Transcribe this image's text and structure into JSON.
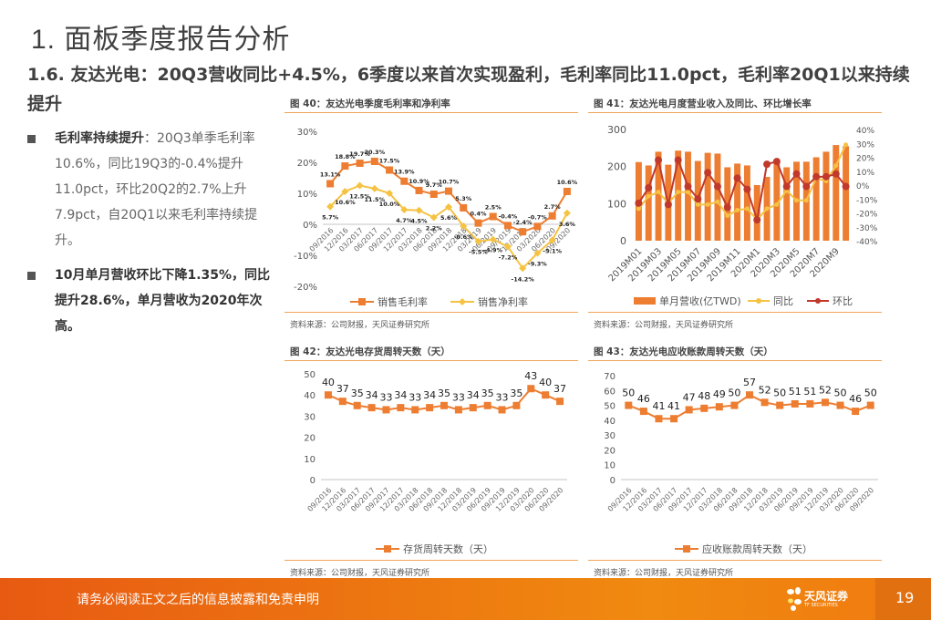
{
  "header": {
    "title": "1. 面板季度报告分析",
    "subtitle": "1.6. 友达光电：20Q3营收同比+4.5%，6季度以来首次实现盈利，毛利率同比11.0pct，毛利率20Q1以来持续提升"
  },
  "bullets": [
    {
      "bold": "毛利率持续提升",
      "text": "：20Q3单季毛利率10.6%，同比19Q3的-0.4%提升11.0pct，环比20Q2的2.7%上升7.9pct，自20Q1以来毛利率持续提升。"
    },
    {
      "bold": "10月单月营收环比下降1.35%，同比提升28.6%，单月营收为2020年次高。",
      "text": ""
    }
  ],
  "source_note": "资料来源：公司财报，天风证券研究所",
  "footer": {
    "disclaimer": "请务必阅读正文之后的信息披露和免责申明",
    "logo_text": "天风证券",
    "logo_sub": "TF SECURITIES",
    "page_number": "19"
  },
  "colors": {
    "orange": "#ed7d31",
    "yellow": "#f5c242",
    "red": "#c0392b",
    "rule": "#f2a65a",
    "footer": "#ee7a12"
  },
  "chart_data": [
    {
      "id": "fig40",
      "title": "图 40：友达光电季度毛利率和净利率",
      "type": "line",
      "categories": [
        "09/2016",
        "12/2016",
        "03/2017",
        "06/2017",
        "09/2017",
        "12/2017",
        "03/2018",
        "06/2018",
        "09/2018",
        "12/2018",
        "03/2019",
        "06/2019",
        "09/2019",
        "12/2019",
        "03/2020",
        "06/2020",
        "09/2020"
      ],
      "series": [
        {
          "name": "销售毛利率",
          "values": [
            13.1,
            18.8,
            19.7,
            20.3,
            17.5,
            13.9,
            10.9,
            9.7,
            10.7,
            5.3,
            0.4,
            2.5,
            -0.4,
            -2.4,
            -0.7,
            2.7,
            10.6
          ],
          "labels": [
            "13.1%",
            "18.8%",
            "19.7%",
            "20.3%",
            "17.5%",
            "13.9%",
            "10.9%",
            "9.7%",
            "10.7%",
            "5.3%",
            "0.4%",
            "2.5%",
            "-0.4%",
            "-2.4%",
            "-0.7%",
            "2.7%",
            "10.6%"
          ]
        },
        {
          "name": "销售净利率",
          "values": [
            5.7,
            10.6,
            12.5,
            11.5,
            10.0,
            4.7,
            4.5,
            2.2,
            5.6,
            -0.6,
            -5.5,
            -4.9,
            -7.2,
            -14.2,
            -9.3,
            -5.1,
            3.6
          ],
          "labels": [
            "5.7%",
            "10.6%",
            "12.5%",
            "11.5%",
            "10.0%",
            "4.7%",
            "4.5%",
            "2.2%",
            "5.6%",
            "-0.6%",
            "-5.5%",
            "-4.9%",
            "-7.2%",
            "-14.2%",
            "-9.3%",
            "-5.1%",
            "3.6%"
          ]
        }
      ],
      "yticks": [
        "30%",
        "20%",
        "10%",
        "0%",
        "-10%",
        "-20%"
      ],
      "ylim": [
        -20,
        30
      ],
      "legend": "bottom"
    },
    {
      "id": "fig41",
      "title": "图 41：友达光电月度营业收入及同比、环比增长率",
      "type": "bar",
      "categories": [
        "2019M01",
        "2019M02",
        "2019M03",
        "2019M04",
        "2019M05",
        "2019M06",
        "2019M07",
        "2019M08",
        "2019M09",
        "2019M10",
        "2019M11",
        "2019M12",
        "2020M1",
        "2020M2",
        "2020M3",
        "2020M4",
        "2020M5",
        "2020M6",
        "2020M7",
        "2020M8",
        "2020M9",
        "2020M10"
      ],
      "xticklabels": [
        "2019M01",
        "2019M03",
        "2019M05",
        "2019M07",
        "2019M09",
        "2019M11",
        "2020M1",
        "2020M3",
        "2020M5",
        "2020M7",
        "2020M9"
      ],
      "series": [
        {
          "name": "单月营收(亿TWD)",
          "type": "bar",
          "axis": "left",
          "values": [
            212,
            203,
            240,
            205,
            243,
            240,
            215,
            237,
            235,
            198,
            208,
            203,
            150,
            172,
            215,
            198,
            213,
            213,
            225,
            240,
            258,
            255
          ]
        },
        {
          "name": "同比",
          "type": "line",
          "axis": "right",
          "values": [
            -17,
            -8,
            -5,
            -13,
            -5,
            -5,
            -14,
            -14,
            -12,
            -22,
            -18,
            -17,
            -25,
            -17,
            -14,
            -4,
            -11,
            -11,
            5,
            3,
            14,
            29
          ]
        },
        {
          "name": "环比",
          "type": "line",
          "axis": "right",
          "values": [
            -13,
            -2,
            18,
            -14,
            18,
            -1,
            -10,
            9,
            -1,
            -16,
            5,
            -3,
            -25,
            15,
            17,
            -1,
            8,
            -1,
            6,
            6,
            8,
            -1
          ]
        }
      ],
      "yticks_left": [
        "300",
        "200",
        "100",
        "0"
      ],
      "ylim_left": [
        0,
        300
      ],
      "yticks_right": [
        "40%",
        "30%",
        "20%",
        "10%",
        "0%",
        "-10%",
        "-20%",
        "-30%",
        "-40%"
      ],
      "ylim_right": [
        -40,
        40
      ],
      "legend": "bottom"
    },
    {
      "id": "fig42",
      "title": "图 42：友达光电存货周转天数（天）",
      "type": "line",
      "categories": [
        "09/2016",
        "12/2016",
        "03/2017",
        "06/2017",
        "09/2017",
        "12/2017",
        "03/2018",
        "06/2018",
        "09/2018",
        "12/2018",
        "03/2019",
        "06/2019",
        "09/2019",
        "12/2019",
        "03/2020",
        "06/2020",
        "09/2020"
      ],
      "series": [
        {
          "name": "存货周转天数（天）",
          "values": [
            40,
            37,
            35,
            34,
            33,
            34,
            33,
            34,
            35,
            33,
            34,
            35,
            33,
            35,
            43,
            40,
            37
          ]
        }
      ],
      "yticks": [
        "50",
        "40",
        "30",
        "20",
        "10",
        "0"
      ],
      "ylim": [
        0,
        50
      ],
      "legend": "bottom"
    },
    {
      "id": "fig43",
      "title": "图 43：友达光电应收账款周转天数（天）",
      "type": "line",
      "categories": [
        "09/2016",
        "12/2016",
        "03/2017",
        "06/2017",
        "09/2017",
        "12/2017",
        "03/2018",
        "06/2018",
        "09/2018",
        "12/2018",
        "03/2019",
        "06/2019",
        "09/2019",
        "12/2019",
        "03/2020",
        "06/2020",
        "09/2020"
      ],
      "series": [
        {
          "name": "应收账款周转天数（天）",
          "values": [
            50,
            46,
            41,
            41,
            47,
            48,
            49,
            50,
            57,
            52,
            50,
            51,
            51,
            52,
            50,
            46,
            50
          ]
        }
      ],
      "yticks": [
        "70",
        "60",
        "50",
        "40",
        "30",
        "20",
        "10",
        "0"
      ],
      "ylim": [
        0,
        70
      ],
      "legend": "bottom"
    }
  ]
}
